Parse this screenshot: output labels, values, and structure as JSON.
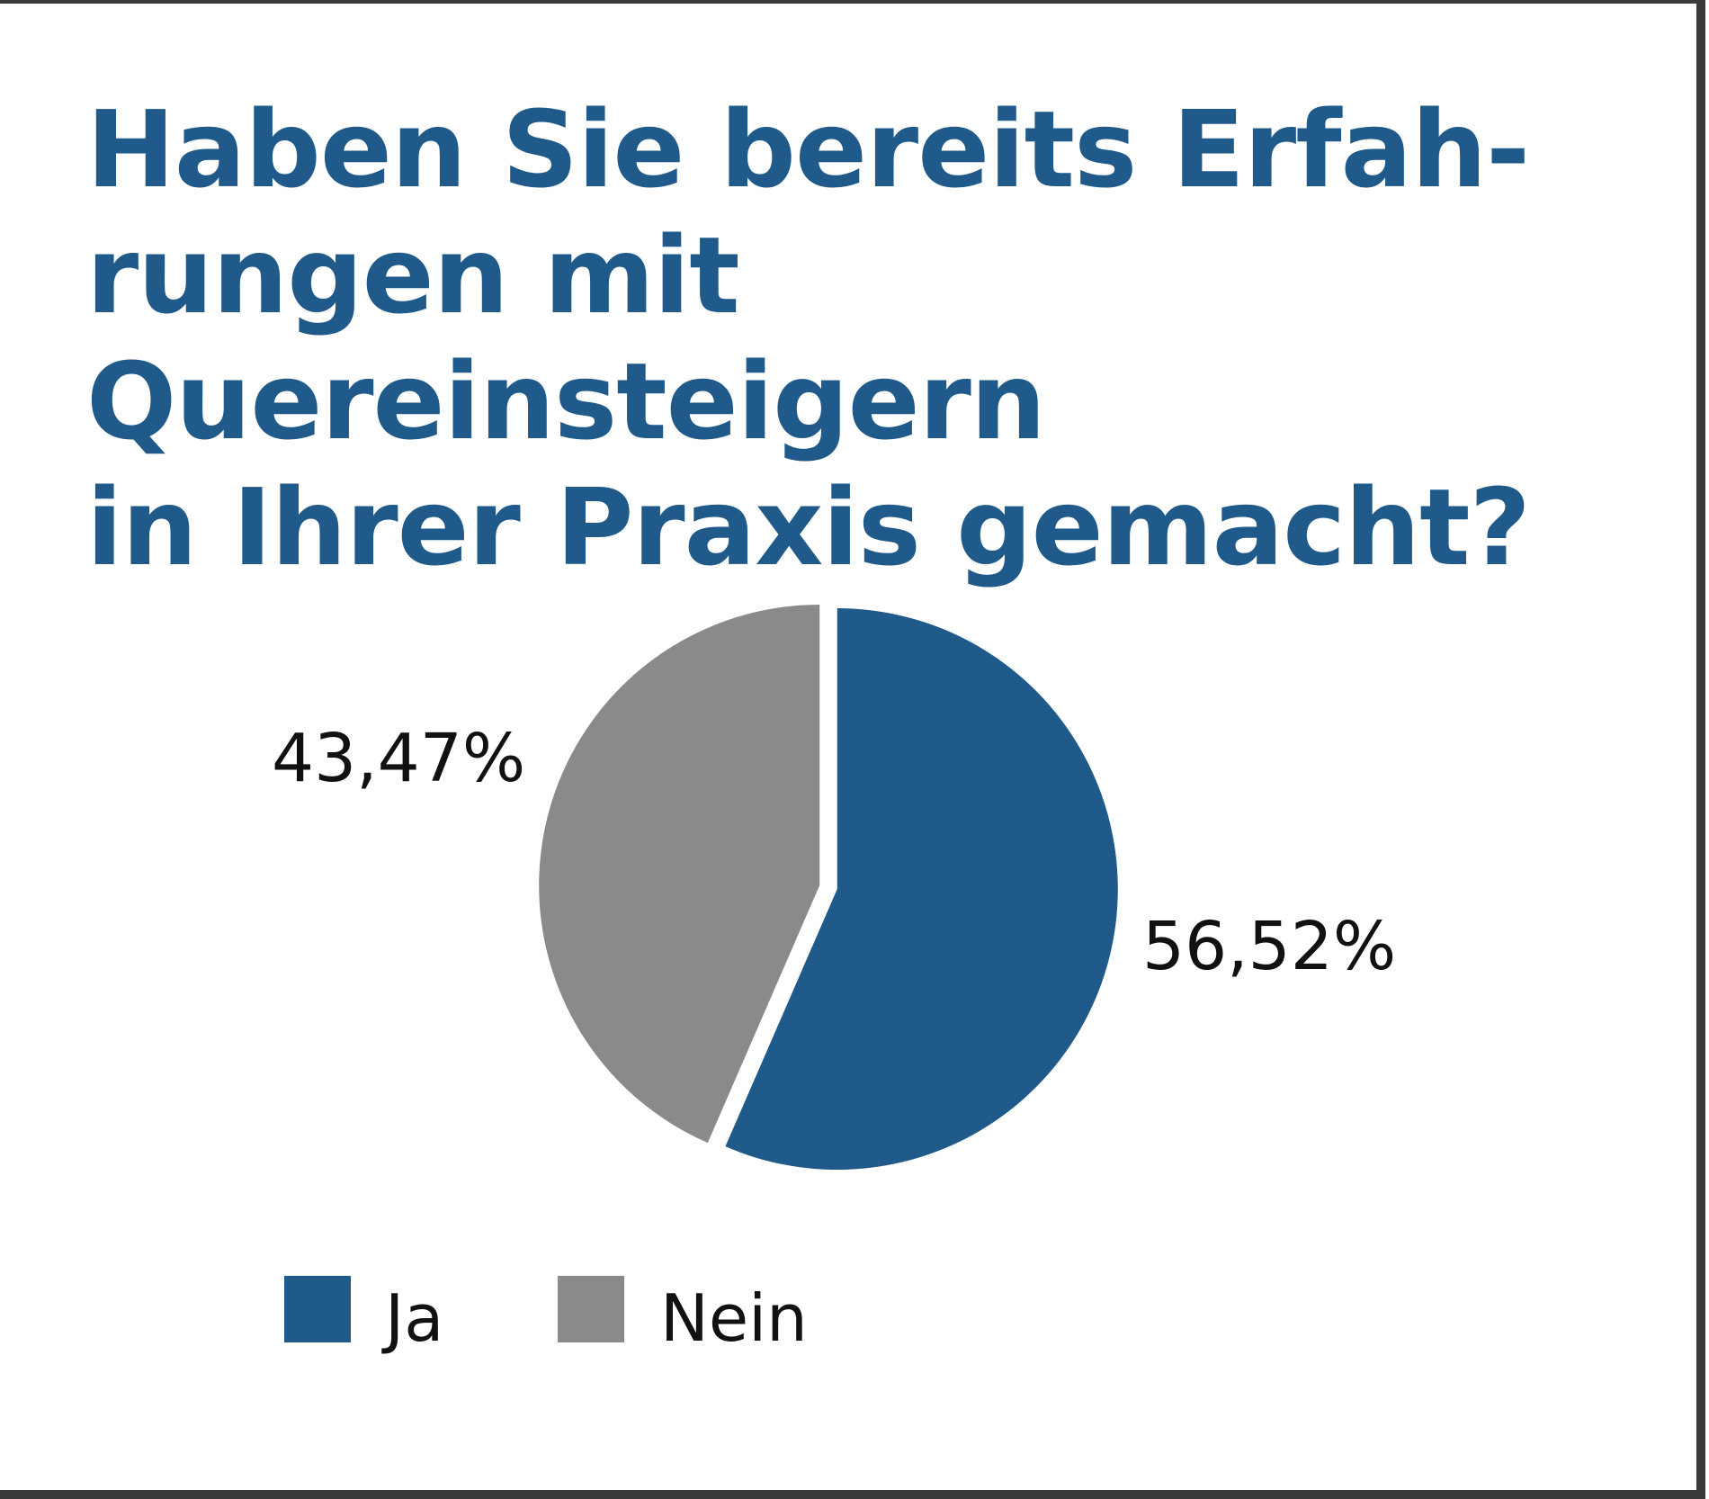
{
  "chart_data": {
    "type": "pie",
    "title": "Haben Sie bereits Erfah-\nrungen mit Quereinsteigern\nin Ihrer Praxis gemacht?",
    "categories": [
      "Ja",
      "Nein"
    ],
    "values": [
      56.52,
      43.47
    ],
    "value_labels": [
      "56,52%",
      "43,47%"
    ],
    "colors": [
      "#1f5a8b",
      "#8a8a8a"
    ],
    "legend": {
      "placement": "bottom-left",
      "entries": [
        "Ja",
        "Nein"
      ]
    }
  }
}
